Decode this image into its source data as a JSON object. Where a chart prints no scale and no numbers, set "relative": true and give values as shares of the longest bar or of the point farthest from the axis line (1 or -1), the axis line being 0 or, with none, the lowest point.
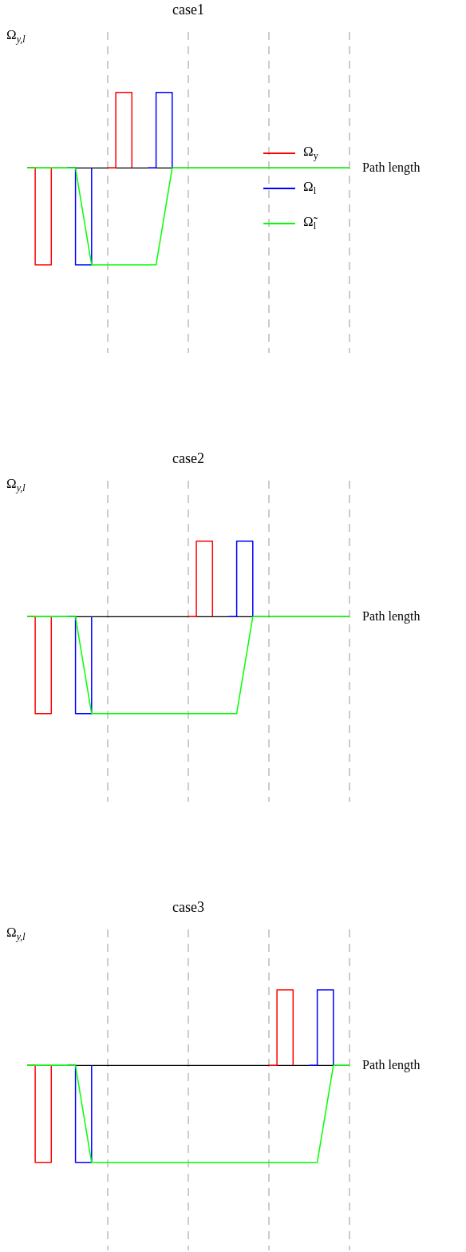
{
  "chart_data": [
    {
      "type": "line",
      "title": "case1",
      "ylabel": "Ω$_{y,l}$",
      "xlabel": "Path length",
      "relative": true,
      "marker": "none",
      "grid": "x",
      "legend": "right",
      "tick_labels": false,
      "categories": [
        null,
        null,
        null,
        null,
        null,
        null,
        null,
        null,
        null,
        null,
        null,
        null,
        null,
        null,
        null,
        null,
        null,
        null,
        null,
        null,
        null,
        null,
        null,
        null,
        null,
        null,
        null,
        null,
        null,
        null,
        null,
        null,
        null,
        null,
        null,
        null,
        null,
        null,
        null,
        null,
        null
      ],
      "series": [
        {
          "name": "Ω$_{y}$",
          "type": "step",
          "color": "#ff0000",
          "values": [
            0,
            -1,
            -1,
            0,
            null,
            null,
            null,
            null,
            null,
            null,
            0,
            0.78,
            0.78,
            0,
            null,
            null,
            null,
            null,
            null,
            null,
            null,
            null,
            null,
            null,
            null,
            null,
            null,
            null,
            null,
            null,
            null,
            null,
            null,
            null,
            null,
            null,
            null,
            null,
            null,
            null,
            null
          ]
        },
        {
          "name": "Ω$_{l}$",
          "type": "step",
          "color": "#0000ff",
          "values": [
            null,
            null,
            null,
            null,
            null,
            0,
            -1,
            -1,
            0,
            null,
            null,
            null,
            null,
            null,
            null,
            0,
            0.78,
            0.78,
            0,
            null,
            null,
            null,
            null,
            null,
            null,
            null,
            null,
            null,
            null,
            null,
            null,
            null,
            null,
            null,
            null,
            null,
            null,
            null,
            null,
            null,
            null
          ]
        },
        {
          "name": "Ω̃$_{l}$",
          "type": "line",
          "color": "#00ff00",
          "values": [
            0,
            0,
            0,
            0,
            0,
            0,
            0,
            -0.5,
            -1,
            -1,
            -1,
            -1,
            -1,
            -1,
            -1,
            -1,
            -1,
            -0.5,
            0,
            0,
            0,
            0,
            0,
            0,
            0,
            0,
            0,
            0,
            0,
            0,
            0,
            0,
            0,
            0,
            0,
            0,
            0,
            0,
            0,
            0,
            0
          ]
        }
      ]
    },
    {
      "type": "line",
      "title": "case2",
      "ylabel": "Ω$_{y,l}$",
      "xlabel": "Path length",
      "relative": true,
      "marker": "none",
      "grid": "x",
      "tick_labels": false,
      "categories": [
        null,
        null,
        null,
        null,
        null,
        null,
        null,
        null,
        null,
        null,
        null,
        null,
        null,
        null,
        null,
        null,
        null,
        null,
        null,
        null,
        null,
        null,
        null,
        null,
        null,
        null,
        null,
        null,
        null,
        null,
        null,
        null,
        null,
        null,
        null,
        null,
        null,
        null,
        null,
        null,
        null
      ],
      "series": [
        {
          "type": "step",
          "color": "#ff0000",
          "values": [
            0,
            -1,
            -1,
            0,
            null,
            null,
            null,
            null,
            null,
            null,
            null,
            null,
            null,
            null,
            null,
            null,
            null,
            null,
            null,
            null,
            0,
            0.78,
            0.78,
            0,
            null,
            null,
            null,
            null,
            null,
            null,
            null,
            null,
            null,
            null,
            null,
            null,
            null,
            null,
            null,
            null,
            null
          ]
        },
        {
          "type": "step",
          "color": "#0000ff",
          "values": [
            null,
            null,
            null,
            null,
            null,
            0,
            -1,
            -1,
            0,
            null,
            null,
            null,
            null,
            null,
            null,
            null,
            null,
            null,
            null,
            null,
            null,
            null,
            null,
            null,
            null,
            0,
            0.78,
            0.78,
            0,
            null,
            null,
            null,
            null,
            null,
            null,
            null,
            null,
            null,
            null,
            null,
            null
          ]
        },
        {
          "type": "line",
          "color": "#00ff00",
          "values": [
            0,
            0,
            0,
            0,
            0,
            0,
            0,
            -0.5,
            -1,
            -1,
            -1,
            -1,
            -1,
            -1,
            -1,
            -1,
            -1,
            -1,
            -1,
            -1,
            -1,
            -1,
            -1,
            -1,
            -1,
            -1,
            -1,
            -0.5,
            0,
            0,
            0,
            0,
            0,
            0,
            0,
            0,
            0,
            0,
            0,
            0,
            0
          ]
        }
      ]
    },
    {
      "type": "line",
      "title": "case3",
      "ylabel": "Ω$_{y,l}$",
      "xlabel": "Path length",
      "relative": true,
      "marker": "none",
      "grid": "x",
      "tick_labels": false,
      "categories": [
        null,
        null,
        null,
        null,
        null,
        null,
        null,
        null,
        null,
        null,
        null,
        null,
        null,
        null,
        null,
        null,
        null,
        null,
        null,
        null,
        null,
        null,
        null,
        null,
        null,
        null,
        null,
        null,
        null,
        null,
        null,
        null,
        null,
        null,
        null,
        null,
        null,
        null,
        null,
        null,
        null
      ],
      "series": [
        {
          "type": "step",
          "color": "#ff0000",
          "values": [
            0,
            -1,
            -1,
            0,
            null,
            null,
            null,
            null,
            null,
            null,
            null,
            null,
            null,
            null,
            null,
            null,
            null,
            null,
            null,
            null,
            null,
            null,
            null,
            null,
            null,
            null,
            null,
            null,
            null,
            null,
            0,
            0.78,
            0.78,
            0,
            null,
            null,
            null,
            null,
            null,
            null,
            null
          ]
        },
        {
          "type": "step",
          "color": "#0000ff",
          "values": [
            null,
            null,
            null,
            null,
            null,
            0,
            -1,
            -1,
            0,
            null,
            null,
            null,
            null,
            null,
            null,
            null,
            null,
            null,
            null,
            null,
            null,
            null,
            null,
            null,
            null,
            null,
            null,
            null,
            null,
            null,
            null,
            null,
            null,
            null,
            null,
            0,
            0.78,
            0.78,
            0,
            null,
            null
          ]
        },
        {
          "type": "line",
          "color": "#00ff00",
          "values": [
            0,
            0,
            0,
            0,
            0,
            0,
            0,
            -0.5,
            -1,
            -1,
            -1,
            -1,
            -1,
            -1,
            -1,
            -1,
            -1,
            -1,
            -1,
            -1,
            -1,
            -1,
            -1,
            -1,
            -1,
            -1,
            -1,
            -1,
            -1,
            -1,
            -1,
            -1,
            -1,
            -1,
            -1,
            -1,
            -1,
            -0.5,
            0,
            0,
            0
          ]
        }
      ]
    }
  ]
}
